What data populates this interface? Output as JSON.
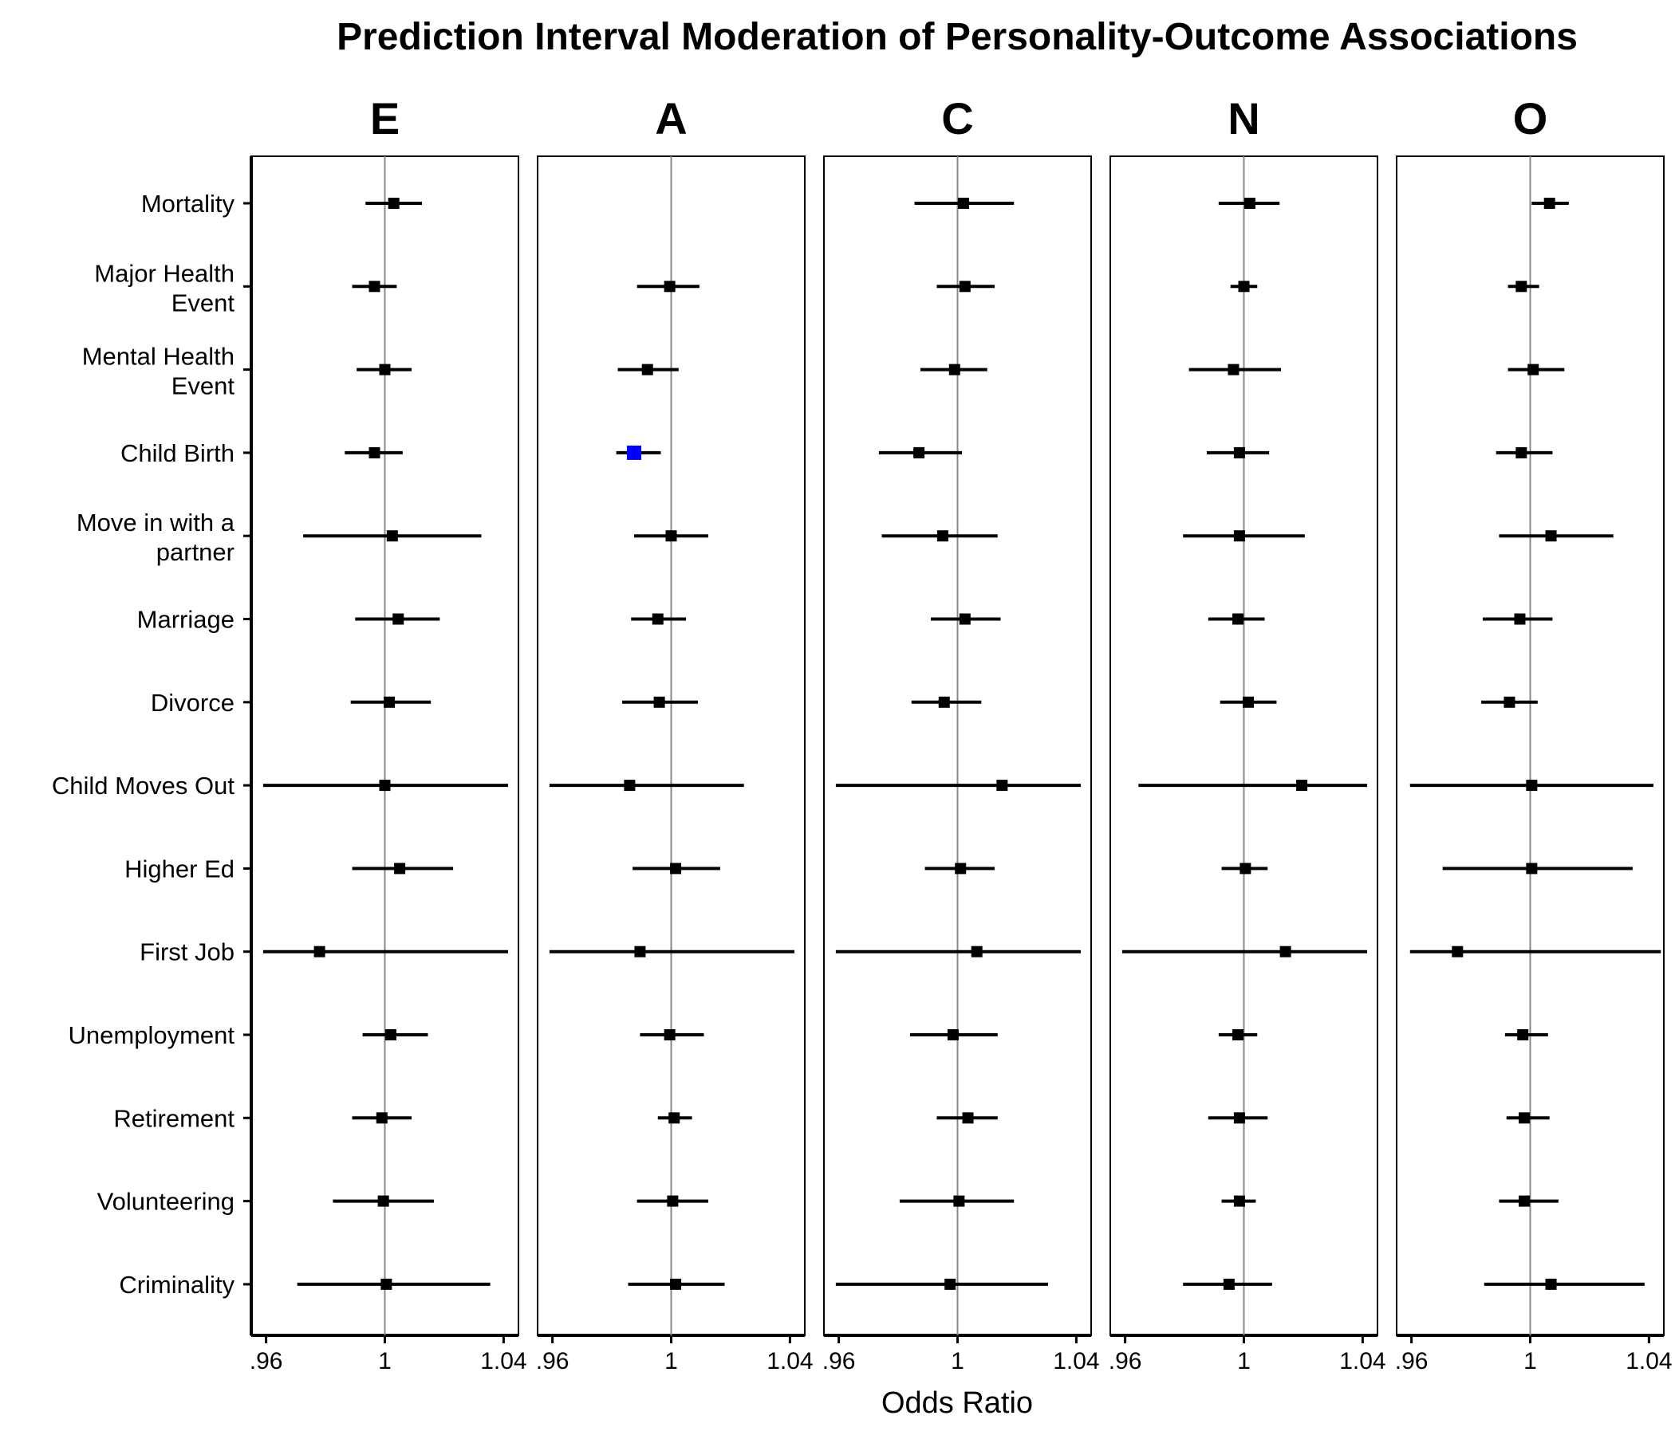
{
  "chart_data": {
    "type": "forest",
    "title": "Prediction Interval Moderation of Personality-Outcome Associations",
    "xlabel": "Odds Ratio",
    "ylabel": "",
    "xlim": [
      0.955,
      1.045
    ],
    "x_ticks": [
      0.96,
      1.0,
      1.04
    ],
    "x_tick_labels": [
      ".96",
      "1",
      "1.04"
    ],
    "reference_line": 1.0,
    "grid": false,
    "point_color": "#000000",
    "highlight_color": "#0000ff",
    "reference_line_color": "#888888",
    "outcomes": [
      {
        "key": "mortality",
        "label": [
          "Mortality"
        ]
      },
      {
        "key": "major_health",
        "label": [
          "Major Health",
          "Event"
        ]
      },
      {
        "key": "mental_health",
        "label": [
          "Mental Health",
          "Event"
        ]
      },
      {
        "key": "child_birth",
        "label": [
          "Child Birth"
        ]
      },
      {
        "key": "move_in",
        "label": [
          "Move in with a",
          "partner"
        ]
      },
      {
        "key": "marriage",
        "label": [
          "Marriage"
        ]
      },
      {
        "key": "divorce",
        "label": [
          "Divorce"
        ]
      },
      {
        "key": "child_moves_out",
        "label": [
          "Child Moves Out"
        ]
      },
      {
        "key": "higher_ed",
        "label": [
          "Higher Ed"
        ]
      },
      {
        "key": "first_job",
        "label": [
          "First Job"
        ]
      },
      {
        "key": "unemployment",
        "label": [
          "Unemployment"
        ]
      },
      {
        "key": "retirement",
        "label": [
          "Retirement"
        ]
      },
      {
        "key": "volunteering",
        "label": [
          "Volunteering"
        ]
      },
      {
        "key": "criminality",
        "label": [
          "Criminality"
        ]
      }
    ],
    "panels": [
      {
        "name": "E",
        "points": [
          {
            "estimate": 1.003,
            "lower": 0.9935,
            "upper": 1.0125
          },
          {
            "estimate": 0.9965,
            "lower": 0.989,
            "upper": 1.004
          },
          {
            "estimate": 1.0,
            "lower": 0.9905,
            "upper": 1.009
          },
          {
            "estimate": 0.9965,
            "lower": 0.9865,
            "upper": 1.006
          },
          {
            "estimate": 1.0025,
            "lower": 0.9725,
            "upper": 1.0325
          },
          {
            "estimate": 1.0045,
            "lower": 0.99,
            "upper": 1.0185
          },
          {
            "estimate": 1.0015,
            "lower": 0.9885,
            "upper": 1.0155
          },
          {
            "estimate": 1.0,
            "lower": 0.959,
            "upper": 1.0415
          },
          {
            "estimate": 1.005,
            "lower": 0.989,
            "upper": 1.023
          },
          {
            "estimate": 0.978,
            "lower": 0.959,
            "upper": 1.0415
          },
          {
            "estimate": 1.002,
            "lower": 0.9925,
            "upper": 1.0145
          },
          {
            "estimate": 0.999,
            "lower": 0.989,
            "upper": 1.009
          },
          {
            "estimate": 0.9995,
            "lower": 0.9825,
            "upper": 1.0165
          },
          {
            "estimate": 1.0005,
            "lower": 0.9705,
            "upper": 1.0355
          }
        ]
      },
      {
        "name": "A",
        "points": [
          {
            "estimate": null,
            "lower": null,
            "upper": null
          },
          {
            "estimate": 0.9995,
            "lower": 0.9885,
            "upper": 1.0095
          },
          {
            "estimate": 0.992,
            "lower": 0.982,
            "upper": 1.0025
          },
          {
            "estimate": 0.9875,
            "lower": 0.9815,
            "upper": 0.9965,
            "highlight": true
          },
          {
            "estimate": 1.0,
            "lower": 0.9875,
            "upper": 1.0125
          },
          {
            "estimate": 0.9955,
            "lower": 0.9865,
            "upper": 1.005
          },
          {
            "estimate": 0.996,
            "lower": 0.9835,
            "upper": 1.009
          },
          {
            "estimate": 0.986,
            "lower": 0.959,
            "upper": 1.0245
          },
          {
            "estimate": 1.0015,
            "lower": 0.987,
            "upper": 1.0165
          },
          {
            "estimate": 0.9895,
            "lower": 0.959,
            "upper": 1.0415
          },
          {
            "estimate": 0.9995,
            "lower": 0.9895,
            "upper": 1.011
          },
          {
            "estimate": 1.001,
            "lower": 0.9955,
            "upper": 1.007
          },
          {
            "estimate": 1.0005,
            "lower": 0.9885,
            "upper": 1.0125
          },
          {
            "estimate": 1.0015,
            "lower": 0.9855,
            "upper": 1.018
          }
        ]
      },
      {
        "name": "C",
        "points": [
          {
            "estimate": 1.002,
            "lower": 0.9855,
            "upper": 1.019
          },
          {
            "estimate": 1.0025,
            "lower": 0.993,
            "upper": 1.0125
          },
          {
            "estimate": 0.999,
            "lower": 0.9875,
            "upper": 1.01
          },
          {
            "estimate": 0.987,
            "lower": 0.9735,
            "upper": 1.0015
          },
          {
            "estimate": 0.995,
            "lower": 0.9745,
            "upper": 1.0135
          },
          {
            "estimate": 1.0025,
            "lower": 0.991,
            "upper": 1.0145
          },
          {
            "estimate": 0.9955,
            "lower": 0.9845,
            "upper": 1.008
          },
          {
            "estimate": 1.015,
            "lower": 0.959,
            "upper": 1.0415
          },
          {
            "estimate": 1.001,
            "lower": 0.989,
            "upper": 1.0125
          },
          {
            "estimate": 1.0065,
            "lower": 0.959,
            "upper": 1.0415
          },
          {
            "estimate": 0.9985,
            "lower": 0.984,
            "upper": 1.0135
          },
          {
            "estimate": 1.0035,
            "lower": 0.993,
            "upper": 1.0135
          },
          {
            "estimate": 1.0005,
            "lower": 0.9805,
            "upper": 1.019
          },
          {
            "estimate": 0.9975,
            "lower": 0.959,
            "upper": 1.0305
          }
        ]
      },
      {
        "name": "N",
        "points": [
          {
            "estimate": 1.002,
            "lower": 0.9915,
            "upper": 1.012
          },
          {
            "estimate": 1.0,
            "lower": 0.9955,
            "upper": 1.0045
          },
          {
            "estimate": 0.9965,
            "lower": 0.9815,
            "upper": 1.0125
          },
          {
            "estimate": 0.9985,
            "lower": 0.9875,
            "upper": 1.0085
          },
          {
            "estimate": 0.9985,
            "lower": 0.9795,
            "upper": 1.0205
          },
          {
            "estimate": 0.998,
            "lower": 0.988,
            "upper": 1.007
          },
          {
            "estimate": 1.0015,
            "lower": 0.992,
            "upper": 1.011
          },
          {
            "estimate": 1.0195,
            "lower": 0.9645,
            "upper": 1.0415
          },
          {
            "estimate": 1.0005,
            "lower": 0.9925,
            "upper": 1.008
          },
          {
            "estimate": 1.014,
            "lower": 0.959,
            "upper": 1.0415
          },
          {
            "estimate": 0.998,
            "lower": 0.9915,
            "upper": 1.0045
          },
          {
            "estimate": 0.9985,
            "lower": 0.988,
            "upper": 1.008
          },
          {
            "estimate": 0.9985,
            "lower": 0.9925,
            "upper": 1.004
          },
          {
            "estimate": 0.995,
            "lower": 0.9795,
            "upper": 1.0095
          }
        ]
      },
      {
        "name": "O",
        "points": [
          {
            "estimate": 1.0065,
            "lower": 1.0005,
            "upper": 1.013
          },
          {
            "estimate": 0.997,
            "lower": 0.9925,
            "upper": 1.003
          },
          {
            "estimate": 1.001,
            "lower": 0.9925,
            "upper": 1.0115
          },
          {
            "estimate": 0.997,
            "lower": 0.9885,
            "upper": 1.0075
          },
          {
            "estimate": 1.007,
            "lower": 0.9895,
            "upper": 1.028
          },
          {
            "estimate": 0.9965,
            "lower": 0.984,
            "upper": 1.0075
          },
          {
            "estimate": 0.993,
            "lower": 0.9835,
            "upper": 1.0025
          },
          {
            "estimate": 1.0005,
            "lower": 0.9595,
            "upper": 1.0415
          },
          {
            "estimate": 1.0005,
            "lower": 0.9705,
            "upper": 1.0345
          },
          {
            "estimate": 0.9755,
            "lower": 0.9595,
            "upper": 1.044
          },
          {
            "estimate": 0.9975,
            "lower": 0.9915,
            "upper": 1.006
          },
          {
            "estimate": 0.998,
            "lower": 0.992,
            "upper": 1.0065
          },
          {
            "estimate": 0.998,
            "lower": 0.9895,
            "upper": 1.0095
          },
          {
            "estimate": 1.007,
            "lower": 0.9845,
            "upper": 1.0385
          }
        ]
      }
    ]
  }
}
